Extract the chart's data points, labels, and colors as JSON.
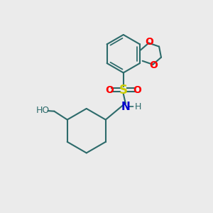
{
  "bg_color": "#ebebeb",
  "bond_color": "#2d6b6b",
  "bond_width": 1.5,
  "S_color": "#cccc00",
  "O_color": "#ff0000",
  "N_color": "#0000cc",
  "atom_color": "#2d6b6b",
  "font_size": 9,
  "label_size": 9,
  "fig_width": 3.0,
  "fig_height": 3.0,
  "dpi": 100,
  "xlim": [
    0,
    10
  ],
  "ylim": [
    0,
    10
  ]
}
